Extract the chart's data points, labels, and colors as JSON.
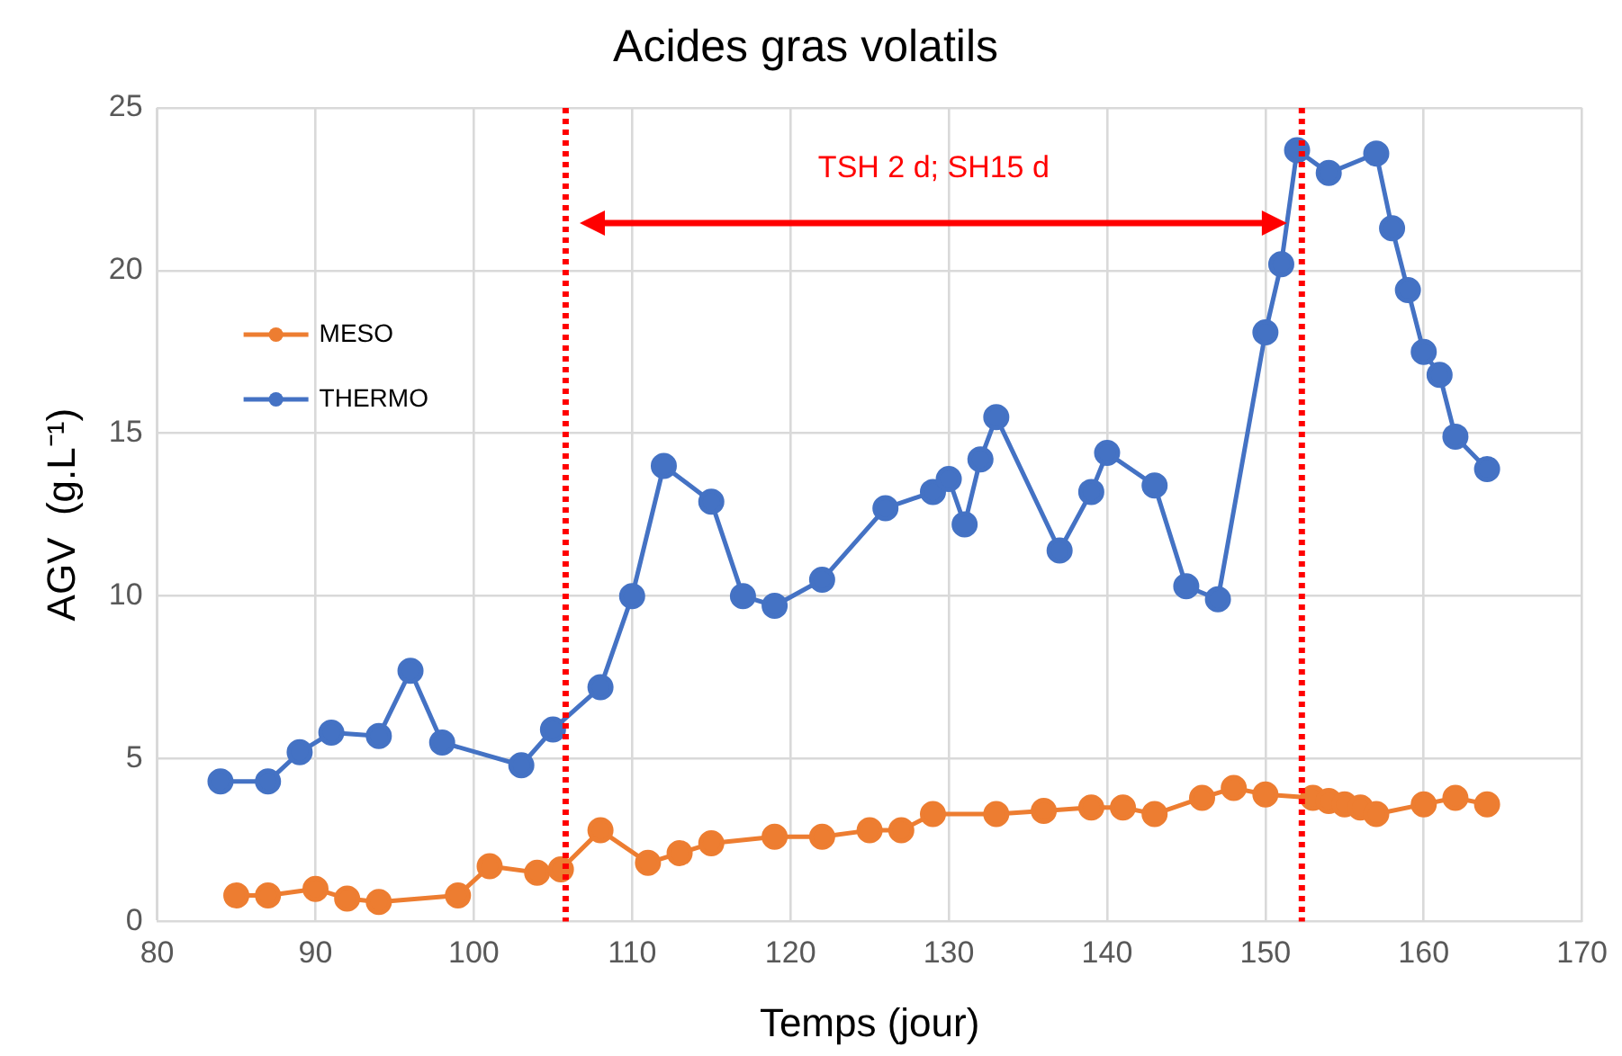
{
  "chart_data": {
    "type": "line",
    "title": "Acides gras volatils",
    "xlabel": "Temps (jour)",
    "ylabel": "AGV  (g.L⁻¹)",
    "xlim": [
      80,
      170
    ],
    "xticks": [
      80,
      90,
      100,
      110,
      120,
      130,
      140,
      150,
      160,
      170
    ],
    "ylim": [
      0,
      25
    ],
    "yticks": [
      0,
      5,
      10,
      15,
      20,
      25
    ],
    "grid": true,
    "legend": "top left",
    "marker": "circle",
    "line_style": "solid",
    "series": [
      {
        "name": "MESO",
        "color": "#ed7d31",
        "x": [
          85,
          87,
          90,
          92,
          94,
          99,
          101,
          104,
          105.5,
          108,
          111,
          113,
          115,
          119,
          122,
          125,
          127,
          129,
          133,
          136,
          139,
          141,
          143,
          146,
          148,
          150,
          153,
          154,
          155,
          156,
          157,
          160,
          162,
          164
        ],
        "values": [
          0.8,
          0.8,
          1.0,
          0.7,
          0.6,
          0.8,
          1.7,
          1.5,
          1.6,
          2.8,
          1.8,
          2.1,
          2.4,
          2.6,
          2.6,
          2.8,
          2.8,
          3.3,
          3.3,
          3.4,
          3.5,
          3.5,
          3.3,
          3.8,
          4.1,
          3.9,
          3.8,
          3.7,
          3.6,
          3.5,
          3.3,
          3.6,
          3.8,
          3.6
        ]
      },
      {
        "name": "THERMO",
        "color": "#4472c4",
        "x": [
          84,
          87,
          89,
          91,
          94,
          96,
          98,
          103,
          105,
          108,
          110,
          112,
          115,
          117,
          119,
          122,
          126,
          129,
          130,
          131,
          132,
          133,
          137,
          139,
          140,
          143,
          145,
          147,
          150,
          151,
          152,
          154,
          157,
          158,
          159,
          160,
          161,
          162,
          164
        ],
        "values": [
          4.3,
          4.3,
          5.2,
          5.8,
          5.7,
          7.7,
          5.5,
          4.8,
          5.9,
          7.2,
          10.0,
          14.0,
          12.9,
          10.0,
          9.7,
          10.5,
          12.7,
          13.2,
          13.6,
          12.2,
          14.2,
          15.5,
          11.4,
          13.2,
          14.4,
          13.4,
          10.3,
          9.9,
          18.1,
          20.2,
          23.7,
          23.0,
          23.6,
          21.3,
          19.4,
          17.5,
          16.8,
          14.9,
          13.9
        ]
      }
    ],
    "ref_lines": [
      {
        "axis": "x",
        "value": 105.8,
        "color": "#ff0000",
        "line_style": "dotted"
      },
      {
        "axis": "x",
        "value": 152.3,
        "color": "#ff0000",
        "line_style": "dotted"
      }
    ],
    "annotations": [
      "TSH 2 d; SH15 d"
    ]
  }
}
